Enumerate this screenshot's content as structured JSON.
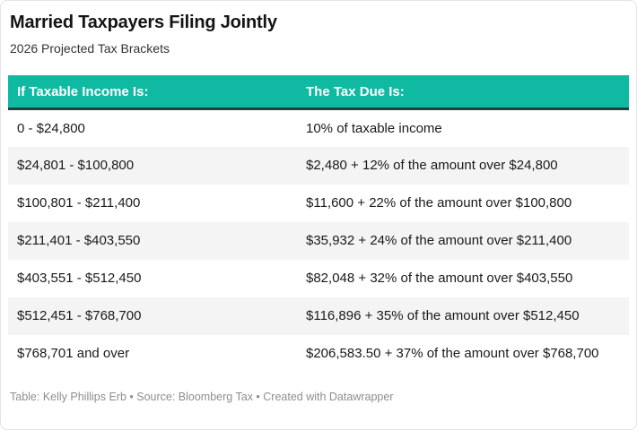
{
  "theme": {
    "header_bg": "#10b9a1",
    "header_text": "#ffffff",
    "header_border": "#24403a",
    "row_alt_bg": "#f4f4f4",
    "body_text": "#1a1a1a",
    "footer_text": "#8e8e8e"
  },
  "chart_data": {
    "type": "table",
    "title": "Married Taxpayers Filing Jointly",
    "subtitle": "2026 Projected Tax Brackets",
    "columns": [
      "If Taxable Income Is:",
      "The Tax Due Is:"
    ],
    "rows": [
      [
        "0 - $24,800",
        "10% of taxable income"
      ],
      [
        "$24,801 - $100,800",
        "$2,480 + 12% of the amount over $24,800"
      ],
      [
        "$100,801 - $211,400",
        "$11,600 + 22% of the amount over $100,800"
      ],
      [
        "$211,401 - $403,550",
        "$35,932 + 24% of the amount over $211,400"
      ],
      [
        "$403,551 - $512,450",
        "$82,048 + 32% of the amount over $403,550"
      ],
      [
        "$512,451 - $768,700",
        "$116,896 + 35% of the amount over $512,450"
      ],
      [
        "$768,701 and over",
        "$206,583.50 + 37% of the amount over $768,700"
      ]
    ]
  },
  "footer": {
    "attribution": "Table: Kelly Phillips Erb • Source: Bloomberg Tax • Created with Datawrapper"
  }
}
